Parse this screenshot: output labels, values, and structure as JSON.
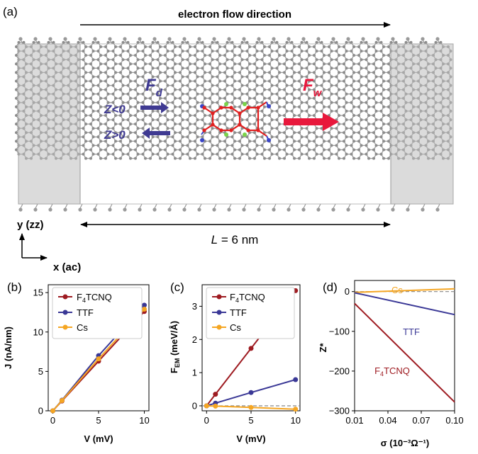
{
  "panel_a": {
    "label": "(a)",
    "flow_label": "electron flow direction",
    "length_label_italic": "L",
    "length_label_rest": " = 6 nm",
    "force_drag": "F",
    "force_drag_sub": "d",
    "force_wind": "F",
    "force_wind_sub": "w",
    "z_neg": "Z<0",
    "z_pos": "Z>0",
    "axis_y": "y (zz)",
    "axis_x": "x (ac)",
    "colors": {
      "drag": "#3f3a92",
      "wind": "#e8183c",
      "lead": "#c8c8c8",
      "atom": "#8c8c8c"
    }
  },
  "chart_data": [
    {
      "panel": "(b)",
      "type": "line",
      "xlabel": "V (mV)",
      "ylabel": "J (nA/nm)",
      "xlim": [
        -0.5,
        10.5
      ],
      "ylim": [
        0,
        16
      ],
      "xticks": [
        "0",
        "5",
        "10"
      ],
      "yticks": [
        "0",
        "5",
        "10",
        "15"
      ],
      "legend_position": "top-left",
      "series": [
        {
          "name": "F4TCNQ",
          "name_main": "F",
          "name_sub": "4",
          "name_rest": "TCNQ",
          "color": "#9e1b21",
          "x": [
            0,
            1,
            5,
            10
          ],
          "y": [
            0,
            1.25,
            6.3,
            12.6
          ]
        },
        {
          "name": "TTF",
          "color": "#3a3896",
          "x": [
            0,
            1,
            5,
            10
          ],
          "y": [
            0,
            1.35,
            7.0,
            13.4
          ]
        },
        {
          "name": "Cs",
          "color": "#f5a623",
          "x": [
            0,
            1,
            5,
            10
          ],
          "y": [
            0,
            1.3,
            6.6,
            12.9
          ]
        }
      ]
    },
    {
      "panel": "(c)",
      "type": "line",
      "xlabel": "V (mV)",
      "ylabel_main": "F",
      "ylabel_sub": "EM",
      "ylabel_rest": " (meV/Å)",
      "xlim": [
        -0.5,
        10.5
      ],
      "ylim": [
        -0.15,
        3.65
      ],
      "xticks": [
        "0",
        "5",
        "10"
      ],
      "yticks": [
        "0",
        "1",
        "2",
        "3"
      ],
      "zero_line": true,
      "legend_position": "top-left",
      "series": [
        {
          "name": "F4TCNQ",
          "name_main": "F",
          "name_sub": "4",
          "name_rest": "TCNQ",
          "color": "#9e1b21",
          "x": [
            0,
            1,
            5,
            10
          ],
          "y": [
            0,
            0.35,
            1.73,
            3.47
          ]
        },
        {
          "name": "TTF",
          "color": "#3a3896",
          "x": [
            0,
            1,
            5,
            10
          ],
          "y": [
            0,
            0.08,
            0.4,
            0.79
          ]
        },
        {
          "name": "Cs",
          "color": "#f5a623",
          "x": [
            0,
            1,
            5,
            10
          ],
          "y": [
            0,
            -0.01,
            -0.05,
            -0.1
          ]
        }
      ]
    },
    {
      "panel": "(d)",
      "type": "line",
      "xlabel": "σ  (10⁻³Ω⁻¹)",
      "ylabel": "Z*",
      "xlim": [
        0.01,
        0.1
      ],
      "ylim": [
        -300,
        28
      ],
      "xticks": [
        "0.01",
        "0.04",
        "0.07",
        "0.10"
      ],
      "yticks": [
        "0",
        "−100",
        "−200",
        "−300"
      ],
      "zero_line": true,
      "series": [
        {
          "name": "Cs",
          "color": "#f5a623",
          "x": [
            0.01,
            0.1
          ],
          "y": [
            -2,
            7
          ]
        },
        {
          "name": "TTF",
          "color": "#3a3896",
          "x": [
            0.01,
            0.1
          ],
          "y": [
            -3,
            -58
          ]
        },
        {
          "name": "F4TCNQ",
          "name_main": "F",
          "name_sub": "4",
          "name_rest": "TCNQ",
          "color": "#9e1b21",
          "x": [
            0.01,
            0.1
          ],
          "y": [
            -30,
            -278
          ]
        }
      ]
    }
  ]
}
